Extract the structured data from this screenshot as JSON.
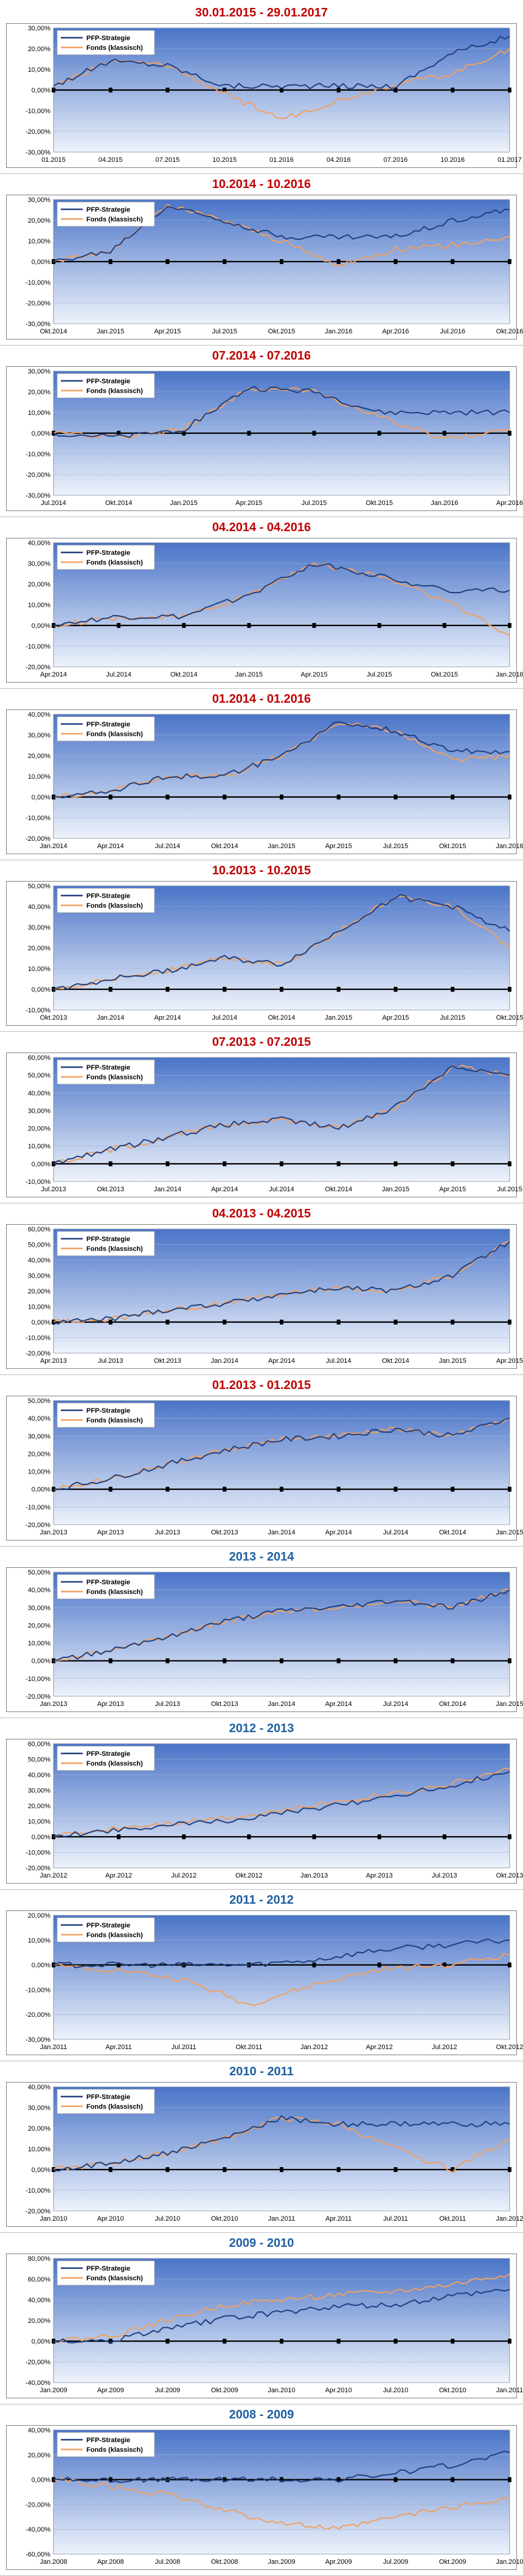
{
  "colors": {
    "strategy": "#1f3f7f",
    "fonds": "#f0a060",
    "title_red": "#c00000",
    "title_blue": "#1f5fa0",
    "plot_top": "#4a74c8",
    "plot_bottom": "#eef3fb"
  },
  "chart_data": [
    {
      "type": "line",
      "title": "30.01.2015 - 29.01.2017",
      "title_color": "red",
      "x": [
        "01.2015",
        "04.2015",
        "07.2015",
        "10.2015",
        "01.2016",
        "04.2016",
        "07.2016",
        "10.2016",
        "01.2017"
      ],
      "yticks": [
        "-30,00%",
        "-20,00%",
        "-10,00%",
        "0,00%",
        "10,00%",
        "20,00%",
        "30,00%"
      ],
      "ylim": [
        -30,
        30
      ],
      "legend_position": "top-left",
      "series": [
        {
          "name": "PFP-Strategie",
          "values": [
            2,
            14,
            12,
            2,
            2,
            2,
            2,
            18,
            26
          ]
        },
        {
          "name": "Fonds (klassisch)",
          "values": [
            2,
            14,
            12,
            -2,
            -14,
            -5,
            3,
            8,
            20
          ]
        }
      ]
    },
    {
      "type": "line",
      "title": "10.2014 - 10.2016",
      "title_color": "red",
      "x": [
        "Okt.2014",
        "Jan.2015",
        "Apr.2015",
        "Jul.2015",
        "Okt.2015",
        "Jan.2016",
        "Apr.2016",
        "Jul.2016",
        "Okt.2016"
      ],
      "yticks": [
        "-30,00%",
        "-20,00%",
        "-10,00%",
        "0,00%",
        "10,00%",
        "20,00%",
        "30,00%"
      ],
      "ylim": [
        -30,
        30
      ],
      "legend_position": "top-left",
      "series": [
        {
          "name": "PFP-Strategie",
          "values": [
            0,
            5,
            27,
            20,
            12,
            12,
            12,
            20,
            25
          ]
        },
        {
          "name": "Fonds (klassisch)",
          "values": [
            0,
            5,
            27,
            20,
            10,
            -2,
            6,
            8,
            12
          ]
        }
      ]
    },
    {
      "type": "line",
      "title": "07.2014 - 07.2016",
      "title_color": "red",
      "x": [
        "Jul.2014",
        "Okt.2014",
        "Jan.2015",
        "Apr.2015",
        "Jul.2015",
        "Okt.2015",
        "Jan.2016",
        "Apr.2016"
      ],
      "yticks": [
        "-30,00%",
        "-20,00%",
        "-10,00%",
        "0,00%",
        "10,00%",
        "20,00%",
        "30,00%"
      ],
      "ylim": [
        -30,
        30
      ],
      "legend_position": "top-left",
      "series": [
        {
          "name": "PFP-Strategie",
          "values": [
            0,
            -2,
            2,
            22,
            20,
            10,
            10,
            10
          ]
        },
        {
          "name": "Fonds (klassisch)",
          "values": [
            0,
            -2,
            2,
            22,
            20,
            8,
            -3,
            2
          ]
        }
      ]
    },
    {
      "type": "line",
      "title": "04.2014 - 04.2016",
      "title_color": "red",
      "x": [
        "Apr.2014",
        "Jul.2014",
        "Okt.2014",
        "Jan.2015",
        "Apr.2015",
        "Jul.2015",
        "Okt.2015",
        "Jan.2016"
      ],
      "yticks": [
        "-20,00%",
        "-10,00%",
        "0,00%",
        "10,00%",
        "20,00%",
        "30,00%",
        "40,00%"
      ],
      "ylim": [
        -20,
        40
      ],
      "legend_position": "top-left",
      "series": [
        {
          "name": "PFP-Strategie",
          "values": [
            0,
            4,
            4,
            15,
            30,
            24,
            17,
            17
          ]
        },
        {
          "name": "Fonds (klassisch)",
          "values": [
            0,
            4,
            4,
            15,
            30,
            24,
            12,
            -5
          ]
        }
      ]
    },
    {
      "type": "line",
      "title": "01.2014 - 01.2016",
      "title_color": "red",
      "x": [
        "Jan.2014",
        "Apr.2014",
        "Jul.2014",
        "Okt.2014",
        "Jan.2015",
        "Apr.2015",
        "Jul.2015",
        "Okt.2015",
        "Jan.2016"
      ],
      "yticks": [
        "-20,00%",
        "-10,00%",
        "0,00%",
        "10,00%",
        "20,00%",
        "30,00%",
        "40,00%"
      ],
      "ylim": [
        -20,
        40
      ],
      "legend_position": "top-left",
      "series": [
        {
          "name": "PFP-Strategie",
          "values": [
            0,
            3,
            10,
            10,
            20,
            36,
            32,
            22,
            22
          ]
        },
        {
          "name": "Fonds (klassisch)",
          "values": [
            0,
            3,
            10,
            10,
            20,
            36,
            32,
            18,
            20
          ]
        }
      ]
    },
    {
      "type": "line",
      "title": "10.2013 - 10.2015",
      "title_color": "red",
      "x": [
        "Okt.2013",
        "Jan.2014",
        "Apr.2014",
        "Jul.2014",
        "Okt.2014",
        "Jan.2015",
        "Apr.2015",
        "Jul.2015",
        "Okt.2015"
      ],
      "yticks": [
        "-10,00%",
        "0,00%",
        "10,00%",
        "20,00%",
        "30,00%",
        "40,00%",
        "50,00%"
      ],
      "ylim": [
        -10,
        50
      ],
      "legend_position": "top-left",
      "series": [
        {
          "name": "PFP-Strategie",
          "values": [
            0,
            5,
            9,
            15,
            12,
            28,
            45,
            40,
            28
          ]
        },
        {
          "name": "Fonds (klassisch)",
          "values": [
            0,
            5,
            9,
            15,
            12,
            28,
            45,
            40,
            20
          ]
        }
      ]
    },
    {
      "type": "line",
      "title": "07.2013 - 07.2015",
      "title_color": "red",
      "x": [
        "Jul.2013",
        "Okt.2013",
        "Jan.2014",
        "Apr.2014",
        "Jul.2014",
        "Okt.2014",
        "Jan.2015",
        "Apr.2015",
        "Jul.2015"
      ],
      "yticks": [
        "-10,00%",
        "0,00%",
        "10,00%",
        "20,00%",
        "30,00%",
        "40,00%",
        "50,00%",
        "60,00%"
      ],
      "ylim": [
        -10,
        60
      ],
      "legend_position": "top-left",
      "series": [
        {
          "name": "PFP-Strategie",
          "values": [
            0,
            8,
            15,
            22,
            25,
            20,
            32,
            55,
            50
          ]
        },
        {
          "name": "Fonds (klassisch)",
          "values": [
            0,
            8,
            15,
            22,
            25,
            20,
            32,
            55,
            50
          ]
        }
      ]
    },
    {
      "type": "line",
      "title": "04.2013 - 04.2015",
      "title_color": "red",
      "x": [
        "Apr.2013",
        "Jul.2013",
        "Okt.2013",
        "Jan.2014",
        "Apr.2014",
        "Jul.2014",
        "Okt.2014",
        "Jan.2015",
        "Apr.2015"
      ],
      "yticks": [
        "-20,00%",
        "-10,00%",
        "0,00%",
        "10,00%",
        "20,00%",
        "30,00%",
        "40,00%",
        "50,00%",
        "60,00%"
      ],
      "ylim": [
        -20,
        60
      ],
      "legend_position": "top-left",
      "series": [
        {
          "name": "PFP-Strategie",
          "values": [
            0,
            2,
            8,
            12,
            18,
            22,
            20,
            30,
            52
          ]
        },
        {
          "name": "Fonds (klassisch)",
          "values": [
            0,
            2,
            8,
            12,
            18,
            22,
            20,
            30,
            52
          ]
        }
      ]
    },
    {
      "type": "line",
      "title": "01.2013 - 01.2015",
      "title_color": "red",
      "x": [
        "Jan.2013",
        "Apr.2013",
        "Jul.2013",
        "Okt.2013",
        "Jan.2014",
        "Apr.2014",
        "Jul.2014",
        "Okt.2014",
        "Jan.2015"
      ],
      "yticks": [
        "-20,00%",
        "-10,00%",
        "0,00%",
        "10,00%",
        "20,00%",
        "30,00%",
        "40,00%",
        "50,00%"
      ],
      "ylim": [
        -20,
        50
      ],
      "legend_position": "top-left",
      "series": [
        {
          "name": "PFP-Strategie",
          "values": [
            0,
            6,
            14,
            22,
            28,
            30,
            34,
            30,
            40
          ]
        },
        {
          "name": "Fonds (klassisch)",
          "values": [
            0,
            6,
            14,
            22,
            28,
            30,
            34,
            30,
            40
          ]
        }
      ]
    },
    {
      "type": "line",
      "title": "2013 - 2014",
      "title_color": "blue",
      "x": [
        "Jan.2013",
        "Apr.2013",
        "Jul.2013",
        "Okt.2013",
        "Jan.2014",
        "Apr.2014",
        "Jul.2014",
        "Okt.2014",
        "Jan.2015"
      ],
      "yticks": [
        "-20,00%",
        "-10,00%",
        "0,00%",
        "10,00%",
        "20,00%",
        "30,00%",
        "40,00%",
        "50,00%"
      ],
      "ylim": [
        -20,
        50
      ],
      "legend_position": "top-left",
      "series": [
        {
          "name": "PFP-Strategie",
          "values": [
            0,
            6,
            14,
            22,
            28,
            30,
            34,
            30,
            40
          ]
        },
        {
          "name": "Fonds (klassisch)",
          "values": [
            0,
            6,
            14,
            22,
            28,
            30,
            34,
            30,
            40
          ]
        }
      ]
    },
    {
      "type": "line",
      "title": "2012 - 2013",
      "title_color": "blue",
      "x": [
        "Jan.2012",
        "Apr.2012",
        "Jul.2012",
        "Okt.2012",
        "Jan.2013",
        "Apr.2013",
        "Jul.2013",
        "Okt.2013"
      ],
      "yticks": [
        "-20,00%",
        "-10,00%",
        "0,00%",
        "10,00%",
        "20,00%",
        "30,00%",
        "40,00%",
        "50,00%",
        "60,00%"
      ],
      "ylim": [
        -20,
        60
      ],
      "legend_position": "top-left",
      "series": [
        {
          "name": "PFP-Strategie",
          "values": [
            0,
            5,
            8,
            12,
            18,
            25,
            32,
            42
          ]
        },
        {
          "name": "Fonds (klassisch)",
          "values": [
            0,
            6,
            10,
            14,
            20,
            27,
            33,
            44
          ]
        }
      ]
    },
    {
      "type": "line",
      "title": "2011 - 2012",
      "title_color": "blue",
      "x": [
        "Jan.2011",
        "Apr.2011",
        "Jul.2011",
        "Okt.2011",
        "Jan.2012",
        "Apr.2012",
        "Jul.2012",
        "Okt.2012"
      ],
      "yticks": [
        "-30,00%",
        "-20,00%",
        "-10,00%",
        "0,00%",
        "10,00%",
        "20,00%"
      ],
      "ylim": [
        -30,
        20
      ],
      "legend_position": "top-left",
      "series": [
        {
          "name": "PFP-Strategie",
          "values": [
            0,
            0,
            0,
            0,
            2,
            6,
            8,
            10
          ]
        },
        {
          "name": "Fonds (klassisch)",
          "values": [
            0,
            -2,
            -6,
            -16,
            -8,
            -2,
            0,
            4
          ]
        }
      ]
    },
    {
      "type": "line",
      "title": "2010 - 2011",
      "title_color": "blue",
      "x": [
        "Jan.2010",
        "Apr.2010",
        "Jul.2010",
        "Okt.2010",
        "Jan.2011",
        "Apr.2011",
        "Jul.2011",
        "Okt.2011",
        "Jan.2012"
      ],
      "yticks": [
        "-20,00%",
        "-10,00%",
        "0,00%",
        "10,00%",
        "20,00%",
        "30,00%",
        "40,00%"
      ],
      "ylim": [
        -20,
        40
      ],
      "legend_position": "top-left",
      "series": [
        {
          "name": "PFP-Strategie",
          "values": [
            0,
            3,
            8,
            15,
            25,
            22,
            22,
            22,
            22
          ]
        },
        {
          "name": "Fonds (klassisch)",
          "values": [
            0,
            3,
            8,
            15,
            25,
            22,
            10,
            0,
            15
          ]
        }
      ]
    },
    {
      "type": "line",
      "title": "2009 - 2010",
      "title_color": "blue",
      "x": [
        "Jan.2009",
        "Apr.2009",
        "Jul.2009",
        "Okt.2009",
        "Jan.2010",
        "Apr.2010",
        "Jul.2010",
        "Okt.2010",
        "Jan.2011"
      ],
      "yticks": [
        "-40,00%",
        "-20,00%",
        "0,00%",
        "20,00%",
        "40,00%",
        "60,00%",
        "80,00%"
      ],
      "ylim": [
        -40,
        80
      ],
      "legend_position": "top-left",
      "series": [
        {
          "name": "PFP-Strategie",
          "values": [
            0,
            0,
            12,
            22,
            28,
            34,
            35,
            44,
            50
          ]
        },
        {
          "name": "Fonds (klassisch)",
          "values": [
            0,
            5,
            20,
            35,
            40,
            45,
            48,
            55,
            65
          ]
        }
      ]
    },
    {
      "type": "line",
      "title": "2008 - 2009",
      "title_color": "blue",
      "x": [
        "Jan.2008",
        "Apr.2008",
        "Jul.2008",
        "Okt.2008",
        "Jan.2009",
        "Apr.2009",
        "Jul.2009",
        "Okt.2009",
        "Jan.2010"
      ],
      "yticks": [
        "-60,00%",
        "-40,00%",
        "-20,00%",
        "0,00%",
        "20,00%",
        "40,00%"
      ],
      "ylim": [
        -60,
        40
      ],
      "legend_position": "top-left",
      "series": [
        {
          "name": "PFP-Strategie",
          "values": [
            0,
            0,
            0,
            0,
            0,
            0,
            5,
            12,
            22
          ]
        },
        {
          "name": "Fonds (klassisch)",
          "values": [
            0,
            -5,
            -12,
            -25,
            -35,
            -40,
            -30,
            -22,
            -15
          ]
        }
      ]
    }
  ]
}
